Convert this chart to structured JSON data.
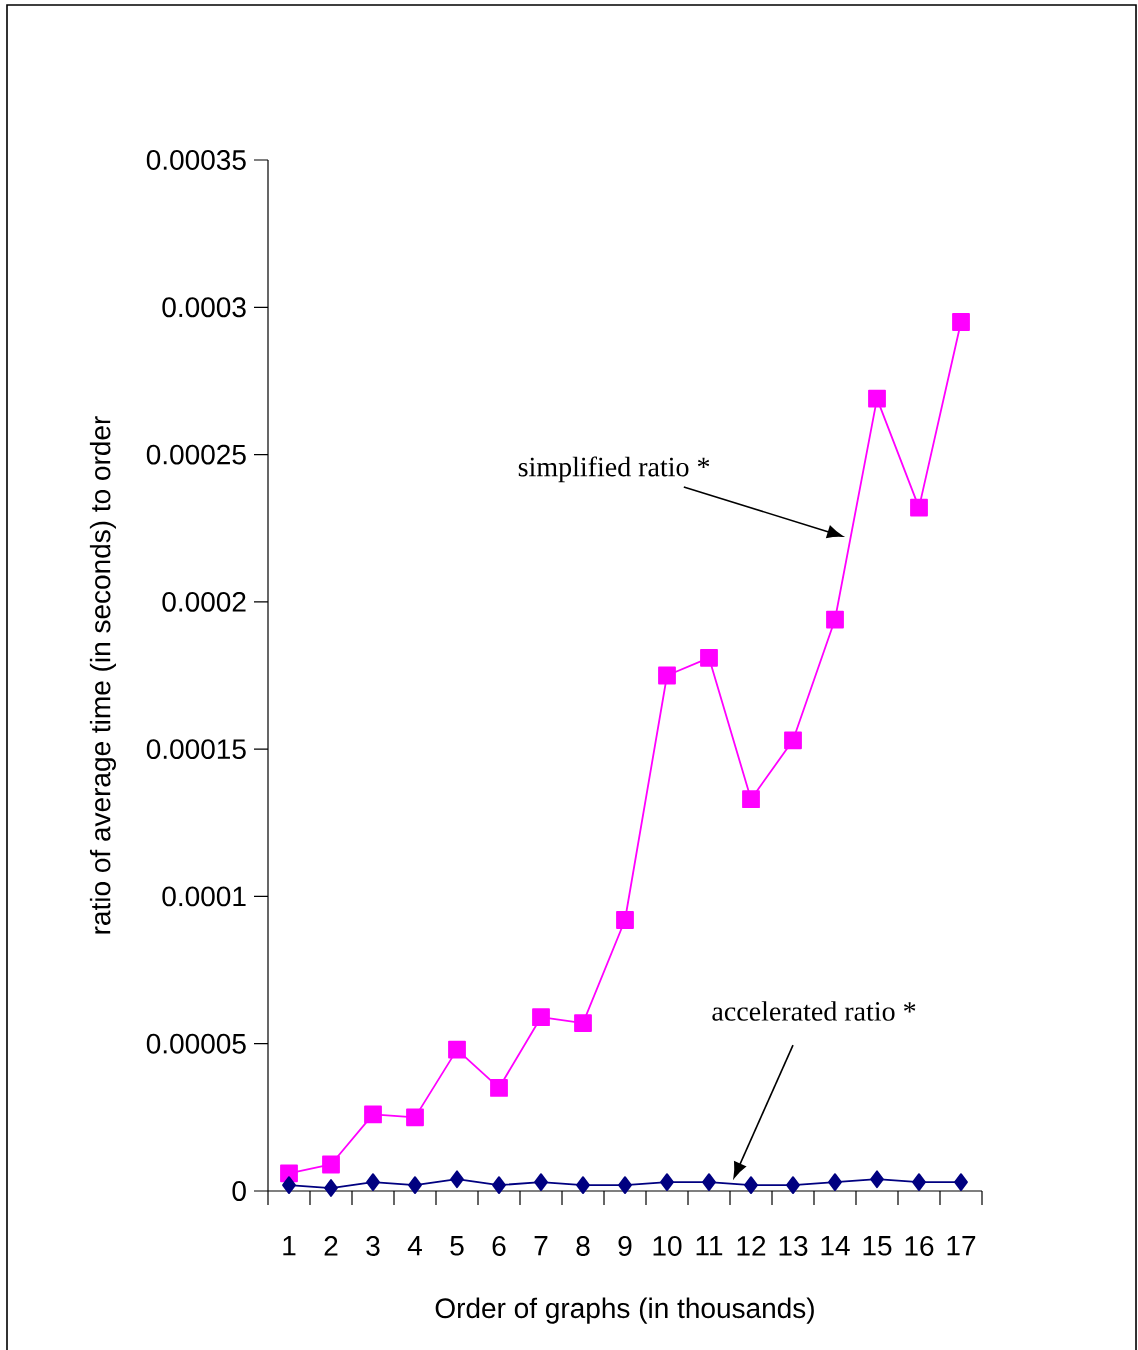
{
  "chart_data": {
    "type": "line",
    "xlabel": "Order of graphs    (in thousands)",
    "ylabel": "ratio of average time (in seconds) to order",
    "x": [
      1,
      2,
      3,
      4,
      5,
      6,
      7,
      8,
      9,
      10,
      11,
      12,
      13,
      14,
      15,
      16,
      17
    ],
    "xlim": [
      0.5,
      17.5
    ],
    "xticks": [
      1,
      2,
      3,
      4,
      5,
      6,
      7,
      8,
      9,
      10,
      11,
      12,
      13,
      14,
      15,
      16,
      17
    ],
    "ylim": [
      0,
      0.00035
    ],
    "yticks": [
      {
        "value": 0,
        "label": "0"
      },
      {
        "value": 5e-05,
        "label": "0.00005"
      },
      {
        "value": 0.0001,
        "label": "0.0001"
      },
      {
        "value": 0.00015,
        "label": "0.00015"
      },
      {
        "value": 0.0002,
        "label": "0.0002"
      },
      {
        "value": 0.00025,
        "label": "0.00025"
      },
      {
        "value": 0.0003,
        "label": "0.0003"
      },
      {
        "value": 0.00035,
        "label": "0.00035"
      }
    ],
    "grid": false,
    "annotations": [
      "simplified ratio *",
      "accelerated ratio *"
    ],
    "series": [
      {
        "color": "#ff00ff",
        "marker": "square",
        "values": [
          6e-06,
          9e-06,
          2.6e-05,
          2.5e-05,
          4.8e-05,
          3.5e-05,
          5.9e-05,
          5.7e-05,
          9.2e-05,
          0.000175,
          0.000181,
          0.000133,
          0.000153,
          0.000194,
          0.000269,
          0.000232,
          0.000295
        ]
      },
      {
        "color": "#000080",
        "marker": "diamond",
        "values": [
          2e-06,
          1e-06,
          3e-06,
          2e-06,
          4e-06,
          2e-06,
          3e-06,
          2e-06,
          2e-06,
          3e-06,
          3e-06,
          2e-06,
          2e-06,
          3e-06,
          4e-06,
          3e-06,
          3e-06
        ]
      }
    ]
  }
}
